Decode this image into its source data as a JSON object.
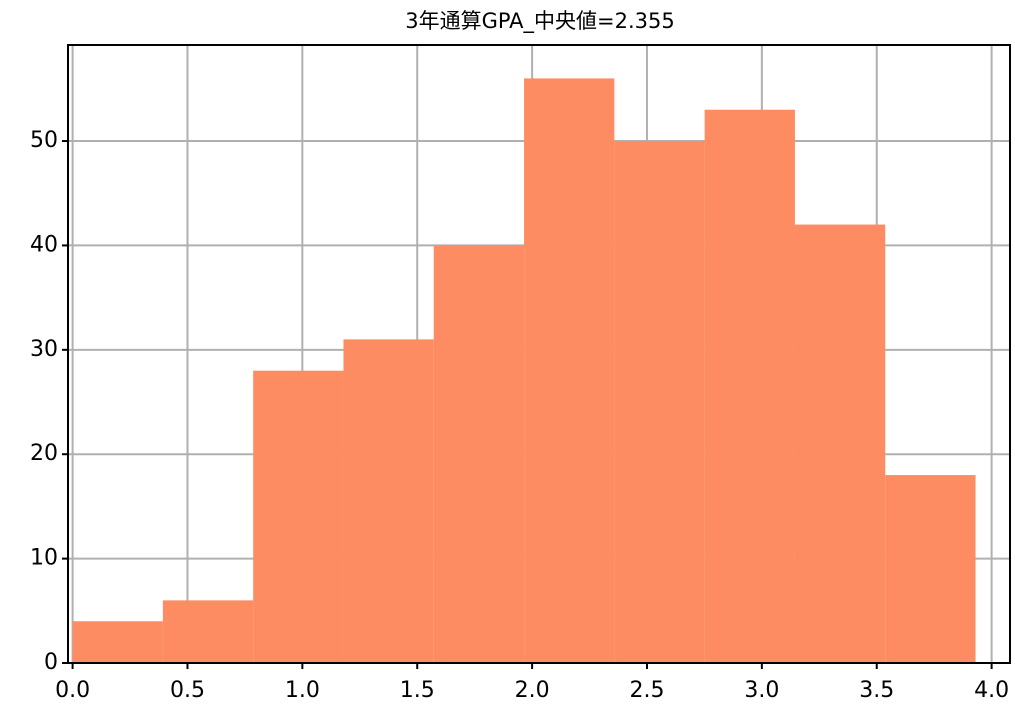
{
  "chart_data": {
    "type": "histogram",
    "title": "3年通算GPA_中央値=2.355",
    "bins": [
      0.0,
      0.393,
      0.786,
      1.179,
      1.572,
      1.965,
      2.358,
      2.751,
      3.144,
      3.537,
      3.93
    ],
    "counts": [
      4,
      6,
      28,
      31,
      40,
      56,
      50,
      53,
      42,
      18
    ],
    "color": "#fd8c62",
    "xlim": [
      -0.02,
      4.08
    ],
    "xticks": [
      {
        "value": 0,
        "label": "0.0"
      },
      0.5,
      {
        "value": 1,
        "label": "1.0"
      },
      1.5,
      {
        "value": 2,
        "label": "2.0"
      },
      2.5,
      {
        "value": 3,
        "label": "3.0"
      },
      3.5,
      {
        "value": 4,
        "label": "4.0"
      }
    ],
    "ylim": [
      0,
      59.2
    ],
    "yticks": [
      0,
      10,
      20,
      30,
      40,
      50
    ],
    "grid": true
  }
}
